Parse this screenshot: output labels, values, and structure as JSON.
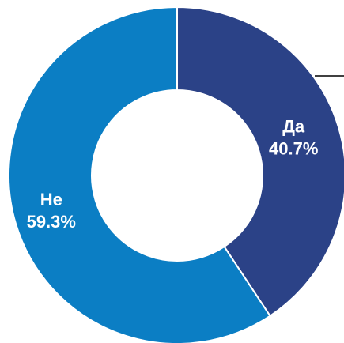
{
  "chart_data": {
    "type": "donut",
    "categories": [
      "Да",
      "Не"
    ],
    "values": [
      40.7,
      59.3
    ],
    "value_labels": [
      "40.7%",
      "59.3%"
    ],
    "colors": [
      "#2b4287",
      "#0b7ec4"
    ]
  }
}
